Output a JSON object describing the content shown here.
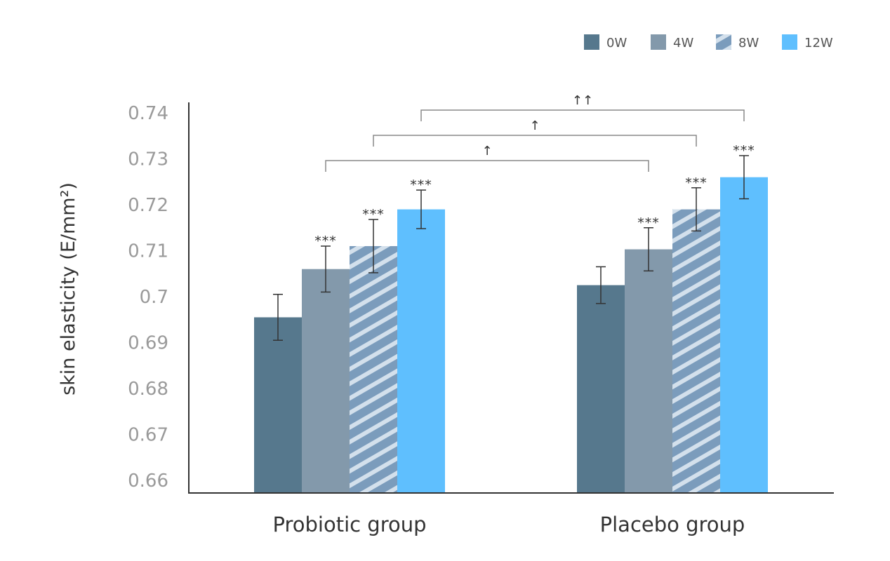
{
  "chart_data": {
    "type": "bar",
    "title": "",
    "xlabel": "",
    "ylabel": "skin elasticity (E/mm²)",
    "ylim": [
      0.66,
      0.74
    ],
    "yticks": [
      "0.66",
      "0.67",
      "0.68",
      "0.69",
      "0.7",
      "0.71",
      "0.72",
      "0.73",
      "0.74"
    ],
    "categories": [
      "Probiotic group",
      "Placebo group"
    ],
    "legend_position": "top-right",
    "grid": false,
    "series": [
      {
        "name": "0W",
        "color": "#56788d",
        "pattern": "solid",
        "values": [
          0.6955,
          0.7025
        ],
        "error": [
          0.005,
          0.004
        ],
        "annotations": [
          "",
          ""
        ]
      },
      {
        "name": "4W",
        "color": "#8399ab",
        "pattern": "solid",
        "values": [
          0.706,
          0.7103
        ],
        "error": [
          0.005,
          0.0047
        ],
        "annotations": [
          "***",
          "***"
        ]
      },
      {
        "name": "8W",
        "color": "#7b9cbc",
        "pattern": "hatched",
        "values": [
          0.711,
          0.719
        ],
        "error": [
          0.0058,
          0.0047
        ],
        "annotations": [
          "***",
          "***"
        ]
      },
      {
        "name": "12W",
        "color": "#5fbffe",
        "pattern": "solid",
        "values": [
          0.719,
          0.726
        ],
        "error": [
          0.0042,
          0.0047
        ],
        "annotations": [
          "***",
          "***"
        ]
      }
    ],
    "comparison_brackets": [
      {
        "from_series": "4W",
        "to_series": "4W",
        "from_category": 0,
        "to_category": 1,
        "symbol": "↑"
      },
      {
        "from_series": "8W",
        "to_series": "8W",
        "from_category": 0,
        "to_category": 1,
        "symbol": "↑"
      },
      {
        "from_series": "12W",
        "to_series": "12W",
        "from_category": 0,
        "to_category": 1,
        "symbol": "↑↑"
      }
    ]
  }
}
